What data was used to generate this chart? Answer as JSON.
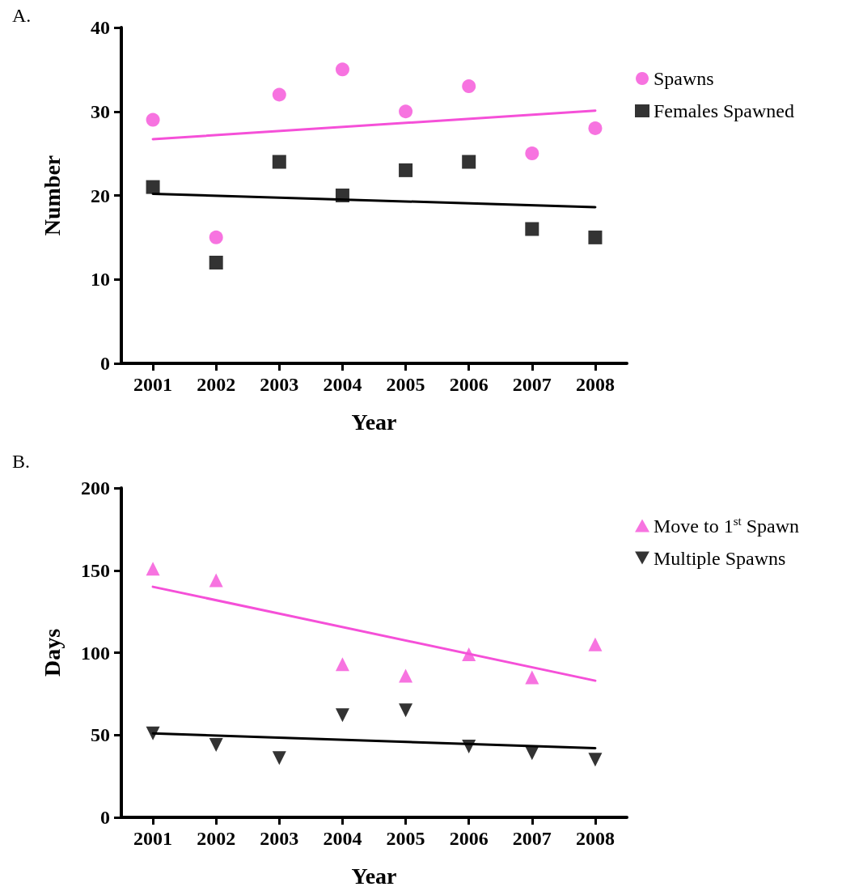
{
  "chart_data": [
    {
      "type": "scatter",
      "title": "A.",
      "xlabel": "Year",
      "ylabel": "Number",
      "x": [
        2001,
        2002,
        2003,
        2004,
        2005,
        2006,
        2007,
        2008
      ],
      "xlim": [
        2000.5,
        2008.5
      ],
      "xticks": [
        2001,
        2002,
        2003,
        2004,
        2005,
        2006,
        2007,
        2008
      ],
      "ylim": [
        0,
        40
      ],
      "yticks": [
        0,
        10,
        20,
        30,
        40
      ],
      "grid": false,
      "legend": "top right",
      "series": [
        {
          "name": "Spawns",
          "color": "#f550d8",
          "marker": "circle",
          "values": [
            29,
            15,
            32,
            35,
            30,
            33,
            25,
            28
          ]
        },
        {
          "name": "Females Spawned",
          "color": "#000000",
          "marker": "square",
          "values": [
            21,
            12,
            24,
            20,
            23,
            24,
            16,
            15
          ]
        },
        {
          "type": "line",
          "color": "#f550d8",
          "marker": "none",
          "values": [
            26.7,
            null,
            null,
            null,
            null,
            null,
            null,
            30.1
          ]
        },
        {
          "type": "line",
          "color": "#000000",
          "marker": "none",
          "values": [
            20.2,
            null,
            null,
            null,
            null,
            null,
            null,
            18.6
          ]
        }
      ]
    },
    {
      "type": "scatter",
      "title": "B.",
      "xlabel": "Year",
      "ylabel": "Days",
      "x": [
        2001,
        2002,
        2003,
        2004,
        2005,
        2006,
        2007,
        2008
      ],
      "xlim": [
        2000.5,
        2008.5
      ],
      "xticks": [
        2001,
        2002,
        2003,
        2004,
        2005,
        2006,
        2007,
        2008
      ],
      "ylim": [
        0,
        200
      ],
      "yticks": [
        0,
        50,
        100,
        150,
        200
      ],
      "grid": false,
      "legend": "top right",
      "series": [
        {
          "name": "Move to 1$^{st}$ Spawn",
          "color": "#f550d8",
          "marker": "triangle",
          "values": [
            151,
            144,
            null,
            93,
            86,
            99,
            85,
            105
          ]
        },
        {
          "name": "Multiple Spawns",
          "color": "#000000",
          "marker": "triangle-down",
          "values": [
            51,
            44,
            36,
            62,
            65,
            43,
            39,
            35
          ]
        },
        {
          "type": "line",
          "color": "#f550d8",
          "marker": "none",
          "values": [
            140,
            null,
            null,
            null,
            null,
            null,
            null,
            83
          ]
        },
        {
          "type": "line",
          "color": "#000000",
          "marker": "none",
          "values": [
            51,
            null,
            null,
            null,
            null,
            null,
            null,
            42
          ]
        }
      ]
    }
  ]
}
